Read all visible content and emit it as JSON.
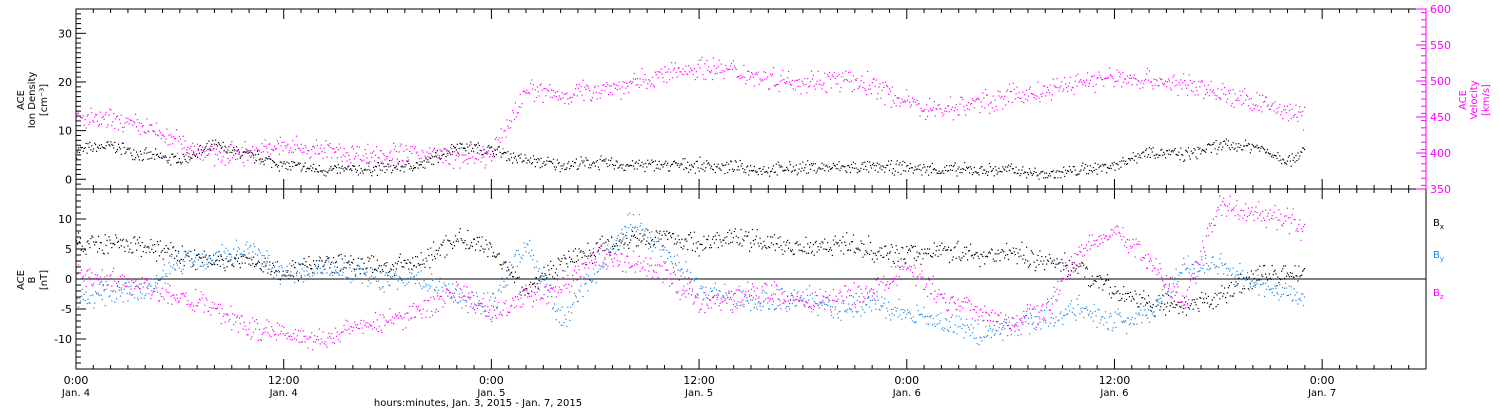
{
  "chart_data": [
    {
      "type": "scatter",
      "panel": "top",
      "ylabel_left": [
        "ACE",
        "Ion Density",
        "[cm⁻³]"
      ],
      "ylabel_right": [
        "ACE",
        "Velocity",
        "[km/s]"
      ],
      "y_left_ticks": [
        "0",
        "10",
        "20",
        "30"
      ],
      "y_right_ticks": [
        "350",
        "400",
        "450",
        "500",
        "550",
        "600"
      ],
      "ylim_left": [
        -2,
        35
      ],
      "ylim_right": [
        350,
        600
      ],
      "xlim_hours": [
        0,
        78
      ],
      "grid": false,
      "series": [
        {
          "name": "Ion Density",
          "color": "#000000",
          "axis": "left",
          "x_hours": [
            0,
            2,
            4,
            6,
            8,
            10,
            12,
            14,
            16,
            18,
            20,
            22,
            24,
            26,
            28,
            30,
            32,
            34,
            36,
            38,
            40,
            42,
            44,
            46,
            48,
            50,
            52,
            54,
            56,
            58,
            60,
            62,
            64,
            66,
            68,
            70,
            71
          ],
          "values": [
            6,
            7,
            5,
            4,
            7,
            5,
            3,
            2,
            2,
            2.5,
            3,
            7,
            6,
            4,
            3,
            3.5,
            3,
            3,
            3,
            2.5,
            2,
            2.5,
            2.5,
            2.5,
            2.5,
            2,
            2,
            2,
            1,
            2,
            3,
            6,
            5,
            7,
            7,
            4,
            6
          ]
        },
        {
          "name": "Velocity",
          "color": "#ff00ff",
          "axis": "right",
          "x_hours": [
            0,
            2,
            4,
            6,
            8,
            10,
            12,
            14,
            16,
            18,
            20,
            22,
            24,
            26,
            28,
            30,
            32,
            34,
            36,
            38,
            40,
            42,
            44,
            46,
            48,
            50,
            52,
            54,
            56,
            58,
            60,
            62,
            64,
            66,
            68,
            70,
            71
          ],
          "values": [
            448,
            445,
            435,
            415,
            398,
            400,
            410,
            405,
            400,
            398,
            400,
            395,
            395,
            490,
            480,
            490,
            495,
            510,
            520,
            515,
            505,
            500,
            502,
            495,
            470,
            460,
            470,
            480,
            485,
            500,
            505,
            502,
            495,
            485,
            470,
            460,
            450
          ]
        }
      ]
    },
    {
      "type": "scatter",
      "panel": "bottom",
      "ylabel_left": [
        "ACE",
        "B",
        "[nT]"
      ],
      "y_left_ticks": [
        "-10",
        "-5",
        "0",
        "5",
        "10"
      ],
      "ylim_left": [
        -15,
        15
      ],
      "xlim_hours": [
        0,
        78
      ],
      "legend": "right",
      "grid": false,
      "series": [
        {
          "name": "B",
          "sub": "x",
          "color": "#000000",
          "x_hours": [
            0,
            2,
            4,
            6,
            8,
            10,
            12,
            14,
            16,
            18,
            20,
            22,
            24,
            26,
            28,
            30,
            32,
            34,
            36,
            38,
            40,
            42,
            44,
            46,
            48,
            50,
            52,
            54,
            56,
            58,
            60,
            62,
            64,
            66,
            68,
            70,
            71
          ],
          "values": [
            6,
            5.8,
            5.5,
            4,
            3,
            3,
            1,
            3,
            2.5,
            2,
            3,
            7,
            5,
            -2,
            3,
            5,
            7,
            7,
            6,
            7,
            6,
            5.5,
            6,
            5,
            4,
            5,
            4,
            4.5,
            3,
            2,
            -2,
            -4,
            -5,
            -3,
            0.5,
            1,
            1
          ]
        },
        {
          "name": "B",
          "sub": "y",
          "color": "#1e88e5",
          "x_hours": [
            0,
            2,
            4,
            6,
            8,
            10,
            12,
            14,
            16,
            18,
            20,
            22,
            24,
            26,
            28,
            30,
            32,
            34,
            36,
            38,
            40,
            42,
            44,
            46,
            48,
            50,
            52,
            54,
            56,
            58,
            60,
            62,
            64,
            66,
            68,
            70,
            71
          ],
          "values": [
            -3,
            -2.5,
            -2,
            3,
            4,
            5,
            1,
            2,
            1,
            0,
            0,
            -3,
            -4,
            6,
            -7,
            1,
            10,
            5,
            -2,
            -3,
            -4,
            -3,
            -5,
            -4,
            -6,
            -7,
            -9,
            -8,
            -6,
            -5,
            -7,
            -6,
            2,
            3,
            -1,
            -2,
            -3.5
          ]
        },
        {
          "name": "B",
          "sub": "z",
          "color": "#ff00ff",
          "x_hours": [
            0,
            2,
            4,
            6,
            8,
            10,
            12,
            14,
            16,
            18,
            20,
            22,
            24,
            26,
            28,
            30,
            32,
            34,
            36,
            38,
            40,
            42,
            44,
            46,
            48,
            50,
            52,
            54,
            56,
            58,
            60,
            62,
            64,
            66,
            68,
            70,
            71
          ],
          "values": [
            1,
            0,
            -1,
            -3,
            -5,
            -8,
            -9,
            -10,
            -8,
            -7,
            -5,
            -2,
            -6,
            -3,
            -1,
            4,
            3,
            1,
            -4,
            -3,
            -2,
            -4,
            -3,
            -2,
            2,
            -3,
            -5,
            -7,
            -5,
            5,
            8,
            3,
            -4,
            12,
            11,
            10,
            8
          ]
        }
      ]
    }
  ],
  "xaxis": {
    "ticks": [
      {
        "hour": 0,
        "time": "0:00",
        "day": "Jan. 4"
      },
      {
        "hour": 12,
        "time": "12:00",
        "day": "Jan. 4"
      },
      {
        "hour": 24,
        "time": "0:00",
        "day": "Jan. 5"
      },
      {
        "hour": 36,
        "time": "12:00",
        "day": "Jan. 5"
      },
      {
        "hour": 48,
        "time": "0:00",
        "day": "Jan. 6"
      },
      {
        "hour": 60,
        "time": "12:00",
        "day": "Jan. 6"
      },
      {
        "hour": 72,
        "time": "0:00",
        "day": "Jan. 7"
      }
    ],
    "label": "hours:minutes, Jan.  3, 2015 - Jan.  7, 2015"
  }
}
